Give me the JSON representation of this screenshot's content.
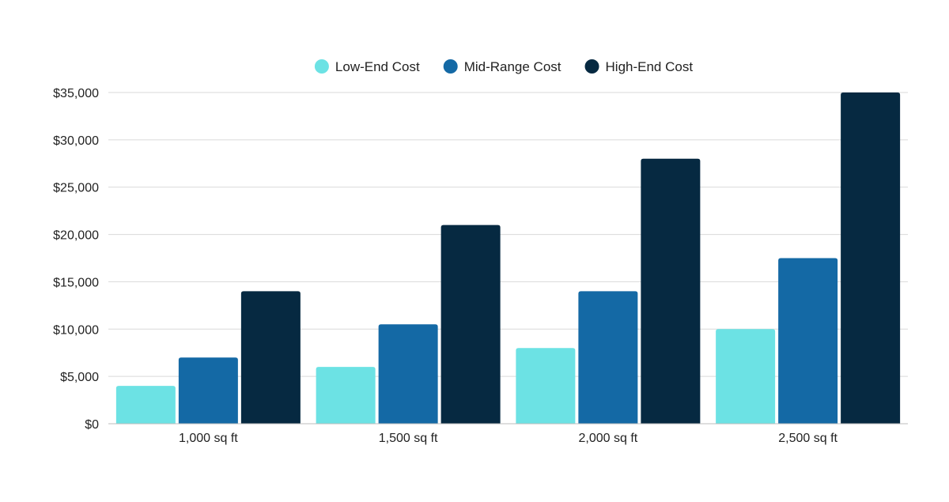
{
  "chart_data": {
    "type": "bar",
    "title": "",
    "xlabel": "",
    "ylabel": "",
    "categories": [
      "1,000 sq ft",
      "1,500 sq ft",
      "2,000 sq ft",
      "2,500 sq ft"
    ],
    "series": [
      {
        "name": "Low-End Cost",
        "color": "#6ce2e4",
        "values": [
          4000,
          6000,
          8000,
          10000
        ]
      },
      {
        "name": "Mid-Range Cost",
        "color": "#1469a5",
        "values": [
          7000,
          10500,
          14000,
          17500
        ]
      },
      {
        "name": "High-End Cost",
        "color": "#062941",
        "values": [
          14000,
          21000,
          28000,
          35000
        ]
      }
    ],
    "ylim": [
      0,
      35000
    ],
    "yticks": [
      0,
      5000,
      10000,
      15000,
      20000,
      25000,
      30000,
      35000
    ],
    "ytick_labels": [
      "$0",
      "$5,000",
      "$10,000",
      "$15,000",
      "$20,000",
      "$25,000",
      "$30,000",
      "$35,000"
    ],
    "grid": true,
    "legend_position": "top-center"
  }
}
